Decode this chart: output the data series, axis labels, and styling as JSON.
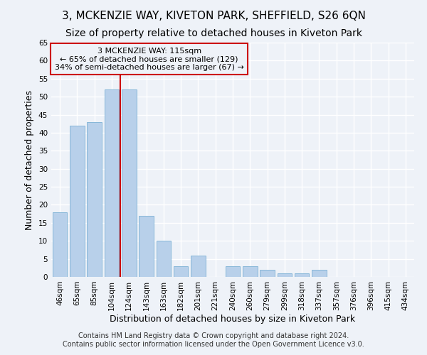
{
  "title": "3, MCKENZIE WAY, KIVETON PARK, SHEFFIELD, S26 6QN",
  "subtitle": "Size of property relative to detached houses in Kiveton Park",
  "xlabel": "Distribution of detached houses by size in Kiveton Park",
  "ylabel": "Number of detached properties",
  "footer_line1": "Contains HM Land Registry data © Crown copyright and database right 2024.",
  "footer_line2": "Contains public sector information licensed under the Open Government Licence v3.0.",
  "categories": [
    "46sqm",
    "65sqm",
    "85sqm",
    "104sqm",
    "124sqm",
    "143sqm",
    "163sqm",
    "182sqm",
    "201sqm",
    "221sqm",
    "240sqm",
    "260sqm",
    "279sqm",
    "299sqm",
    "318sqm",
    "337sqm",
    "357sqm",
    "376sqm",
    "396sqm",
    "415sqm",
    "434sqm"
  ],
  "values": [
    18,
    42,
    43,
    52,
    52,
    17,
    10,
    3,
    6,
    0,
    3,
    3,
    2,
    1,
    1,
    2,
    0,
    0,
    0,
    0,
    0
  ],
  "bar_color": "#b8d0ea",
  "bar_edge_color": "#7aafd4",
  "background_color": "#eef2f8",
  "grid_color": "#ffffff",
  "vline_color": "#cc0000",
  "annotation_box_text": "3 MCKENZIE WAY: 115sqm\n← 65% of detached houses are smaller (129)\n34% of semi-detached houses are larger (67) →",
  "annotation_box_color": "#cc0000",
  "ylim": [
    0,
    65
  ],
  "yticks": [
    0,
    5,
    10,
    15,
    20,
    25,
    30,
    35,
    40,
    45,
    50,
    55,
    60,
    65
  ],
  "title_fontsize": 11,
  "subtitle_fontsize": 10,
  "xlabel_fontsize": 9,
  "ylabel_fontsize": 9,
  "tick_fontsize": 7.5,
  "annotation_fontsize": 8,
  "footer_fontsize": 7
}
